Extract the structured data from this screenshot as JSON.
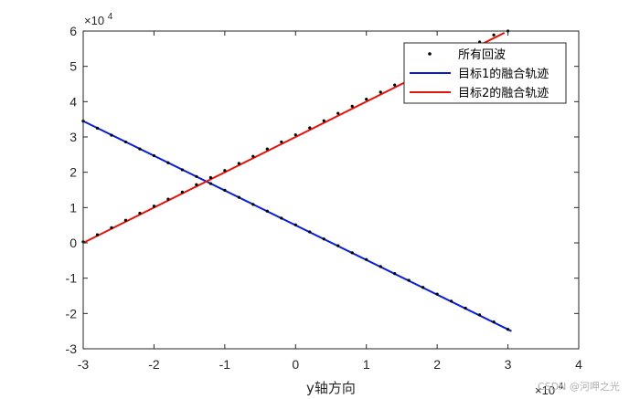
{
  "chart_data": {
    "type": "scatter",
    "xlabel": "y轴方向",
    "ylabel": "",
    "title": "",
    "xlim": [
      -3,
      4
    ],
    "ylim": [
      -3,
      6
    ],
    "x_ticks": [
      -3,
      -2,
      -1,
      0,
      1,
      2,
      3,
      4
    ],
    "y_ticks": [
      -3,
      -2,
      -1,
      0,
      1,
      2,
      3,
      4,
      5,
      6
    ],
    "x_tick_labels": [
      "-3",
      "-2",
      "-1",
      "0",
      "1",
      "2",
      "3",
      "4"
    ],
    "y_tick_labels": [
      "-3",
      "-2",
      "-1",
      "0",
      "1",
      "2",
      "3",
      "4",
      "5",
      "6"
    ],
    "x_exponent_label": "×10",
    "x_exponent_power": "4",
    "y_exponent_label": "×10",
    "y_exponent_power": "4",
    "grid": false,
    "legend_position": "top-right",
    "series": [
      {
        "name": "所有回波",
        "type": "scatter",
        "color": "#000000",
        "x": [
          -3.0,
          -2.8,
          -2.6,
          -2.4,
          -2.2,
          -2.0,
          -1.8,
          -1.6,
          -1.4,
          -1.2,
          -1.0,
          -0.8,
          -0.6,
          -0.4,
          -0.2,
          0.0,
          0.2,
          0.4,
          0.6,
          0.8,
          1.0,
          1.2,
          1.4,
          1.6,
          1.8,
          2.0,
          2.2,
          2.4,
          2.6,
          2.8,
          3.0,
          -3.0,
          -2.8,
          -2.6,
          -2.4,
          -2.2,
          -2.0,
          -1.8,
          -1.6,
          -1.4,
          -1.2,
          -1.0,
          -0.8,
          -0.6,
          -0.4,
          -0.2,
          0.0,
          0.2,
          0.4,
          0.6,
          0.8,
          1.0,
          1.2,
          1.4,
          1.6,
          1.8,
          2.0,
          2.2,
          2.4,
          2.6,
          2.8,
          3.0
        ],
        "y": [
          3.45,
          3.25,
          3.05,
          2.86,
          2.66,
          2.47,
          2.27,
          2.07,
          1.88,
          1.68,
          1.49,
          1.29,
          1.09,
          0.9,
          0.7,
          0.51,
          0.31,
          0.11,
          -0.08,
          -0.28,
          -0.47,
          -0.67,
          -0.87,
          -1.06,
          -1.26,
          -1.45,
          -1.65,
          -1.85,
          -2.04,
          -2.24,
          -2.45,
          0.03,
          0.23,
          0.43,
          0.64,
          0.84,
          1.04,
          1.24,
          1.44,
          1.65,
          1.85,
          2.05,
          2.25,
          2.45,
          2.66,
          2.86,
          3.06,
          3.26,
          3.46,
          3.67,
          3.87,
          4.07,
          4.27,
          4.47,
          4.68,
          4.88,
          5.08,
          5.28,
          5.48,
          5.69,
          5.89,
          6.0
        ]
      },
      {
        "name": "目标1的融合轨迹",
        "type": "line",
        "color": "#0a1fd4",
        "x": [
          -3.0,
          3.05
        ],
        "y": [
          3.45,
          -2.5
        ]
      },
      {
        "name": "目标2的融合轨迹",
        "type": "line",
        "color": "#e0150c",
        "x": [
          -3.0,
          2.95
        ],
        "y": [
          0.0,
          5.95
        ]
      }
    ]
  },
  "watermark": "CSDN @河呷之光"
}
